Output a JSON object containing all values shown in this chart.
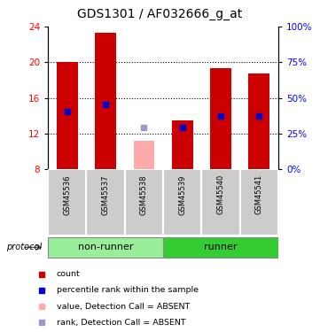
{
  "title": "GDS1301 / AF032666_g_at",
  "samples": [
    "GSM45536",
    "GSM45537",
    "GSM45538",
    "GSM45539",
    "GSM45540",
    "GSM45541"
  ],
  "count_values": [
    20.0,
    23.3,
    8.0,
    13.5,
    19.3,
    18.7
  ],
  "rank_values": [
    14.5,
    15.3,
    8.0,
    12.7,
    14.0,
    14.0
  ],
  "absent_flags": [
    false,
    false,
    true,
    false,
    false,
    false
  ],
  "absent_bar_top": [
    0,
    0,
    11.2,
    0,
    0,
    0
  ],
  "absent_rank_value": [
    0,
    0,
    12.7,
    0,
    0,
    0
  ],
  "ylim": [
    8,
    24
  ],
  "yticks_left": [
    8,
    12,
    16,
    20,
    24
  ],
  "yticks_right": [
    0,
    25,
    50,
    75,
    100
  ],
  "right_ylim": [
    0,
    100
  ],
  "bar_color_present": "#cc0000",
  "bar_color_absent": "#ffaaaa",
  "rank_color_present": "#0000cc",
  "rank_color_absent": "#9999cc",
  "bar_width": 0.55,
  "rank_marker_size": 5,
  "groups": [
    {
      "label": "non-runner",
      "indices": [
        0,
        1,
        2
      ],
      "color": "#99ee99"
    },
    {
      "label": "runner",
      "indices": [
        3,
        4,
        5
      ],
      "color": "#33cc33"
    }
  ],
  "group_label_fontsize": 8,
  "protocol_label": "protocol",
  "title_fontsize": 10,
  "col_bg": "#cccccc",
  "col_border": "#ffffff"
}
